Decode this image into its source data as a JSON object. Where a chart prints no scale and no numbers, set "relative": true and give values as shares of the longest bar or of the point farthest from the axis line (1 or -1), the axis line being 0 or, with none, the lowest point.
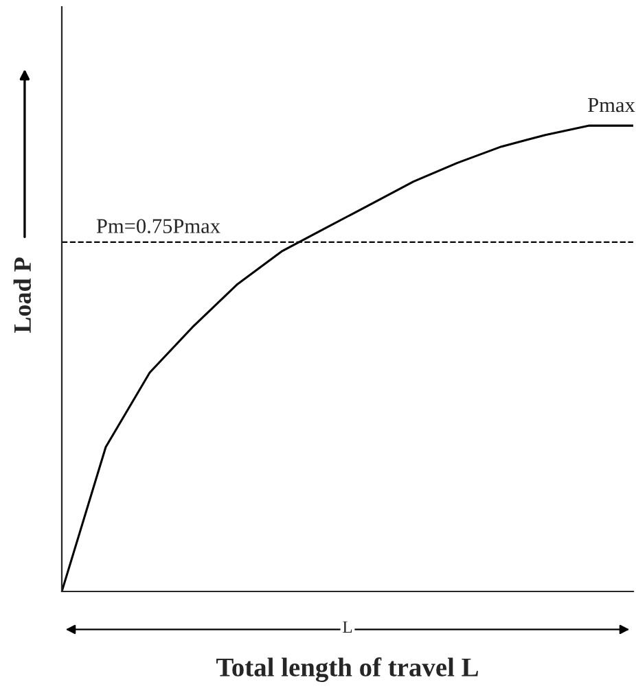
{
  "chart_data": {
    "type": "line",
    "relative": true,
    "xlabel": "Total length of travel L",
    "ylabel": "Load P",
    "categories": [
      null,
      null,
      null,
      null,
      null,
      null,
      null,
      null,
      null,
      null,
      null,
      null,
      null,
      null
    ],
    "series": [
      {
        "color": "#000000",
        "values": [
          0,
          0.31,
          0.47,
          0.57,
          0.66,
          0.73,
          0.78,
          0.83,
          0.88,
          0.92,
          0.955,
          0.98,
          1,
          1
        ]
      }
    ],
    "ref_lines": [
      {
        "axis": "y",
        "value": 0.75,
        "label": "Pm=0.75Pmax",
        "color": "#000000",
        "line_style": "dashed"
      }
    ],
    "annotations": [
      "Pmax",
      "L"
    ],
    "line_style": "solid",
    "marker": "none"
  }
}
